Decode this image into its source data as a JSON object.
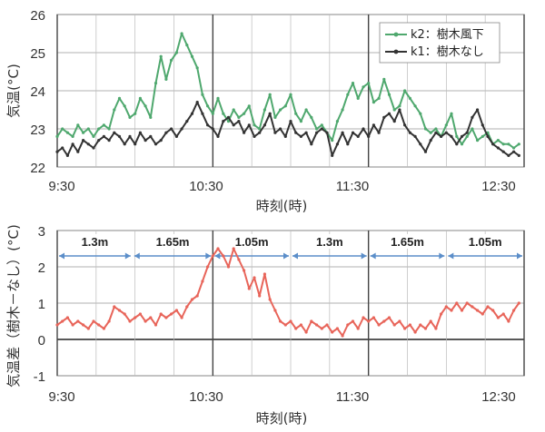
{
  "chart_data": [
    {
      "type": "line",
      "ylabel": "気温(°C)",
      "xlabel": "時刻(時)",
      "ylim": [
        22,
        26
      ],
      "yticks": [
        "22",
        "23",
        "24",
        "25",
        "26"
      ],
      "xticks": [
        "9:30",
        "10:30",
        "11:30",
        "12:30"
      ],
      "xlim_minutes": [
        0,
        180
      ],
      "grid": true,
      "legend_position": "top-right",
      "series": [
        {
          "name": "k2：樹木風下",
          "color": "#4fa86e",
          "points": [
            [
              0,
              22.8
            ],
            [
              4,
              23.0
            ],
            [
              8,
              22.9
            ],
            [
              12,
              22.8
            ],
            [
              16,
              23.1
            ],
            [
              20,
              22.9
            ],
            [
              24,
              23.0
            ],
            [
              28,
              22.8
            ],
            [
              32,
              23.0
            ],
            [
              36,
              23.1
            ],
            [
              40,
              23.0
            ],
            [
              44,
              23.5
            ],
            [
              48,
              23.8
            ],
            [
              52,
              23.6
            ],
            [
              56,
              23.3
            ],
            [
              60,
              23.4
            ],
            [
              64,
              23.8
            ],
            [
              68,
              23.6
            ],
            [
              72,
              23.3
            ],
            [
              76,
              24.2
            ],
            [
              80,
              24.9
            ],
            [
              84,
              24.3
            ],
            [
              88,
              24.8
            ],
            [
              92,
              25.0
            ],
            [
              96,
              25.5
            ],
            [
              100,
              25.2
            ],
            [
              104,
              24.9
            ],
            [
              108,
              24.6
            ],
            [
              112,
              23.9
            ],
            [
              116,
              23.6
            ],
            [
              120,
              23.4
            ],
            [
              124,
              23.8
            ],
            [
              128,
              23.4
            ],
            [
              132,
              23.2
            ],
            [
              136,
              23.5
            ],
            [
              140,
              23.3
            ],
            [
              144,
              23.4
            ],
            [
              148,
              23.6
            ],
            [
              152,
              23.1
            ],
            [
              156,
              23.0
            ],
            [
              160,
              23.5
            ],
            [
              164,
              23.9
            ],
            [
              168,
              23.3
            ],
            [
              172,
              23.5
            ],
            [
              176,
              23.6
            ],
            [
              180,
              23.9
            ],
            [
              184,
              23.4
            ],
            [
              188,
              23.2
            ],
            [
              192,
              23.5
            ],
            [
              196,
              23.3
            ],
            [
              200,
              23.0
            ],
            [
              204,
              23.1
            ],
            [
              208,
              22.9
            ],
            [
              212,
              22.7
            ],
            [
              216,
              23.2
            ],
            [
              220,
              23.5
            ],
            [
              224,
              23.9
            ],
            [
              228,
              24.2
            ],
            [
              232,
              23.8
            ],
            [
              236,
              24.1
            ],
            [
              240,
              24.2
            ],
            [
              244,
              23.7
            ],
            [
              248,
              23.8
            ],
            [
              252,
              24.3
            ],
            [
              256,
              23.9
            ],
            [
              260,
              23.5
            ],
            [
              264,
              23.6
            ],
            [
              268,
              24.0
            ],
            [
              272,
              23.8
            ],
            [
              276,
              23.6
            ],
            [
              280,
              23.4
            ],
            [
              284,
              23.0
            ],
            [
              288,
              22.9
            ],
            [
              292,
              23.0
            ],
            [
              296,
              22.8
            ],
            [
              300,
              23.1
            ],
            [
              304,
              23.4
            ],
            [
              308,
              22.8
            ],
            [
              312,
              22.6
            ],
            [
              316,
              22.8
            ],
            [
              320,
              23.0
            ],
            [
              324,
              22.7
            ],
            [
              328,
              22.8
            ],
            [
              332,
              22.9
            ],
            [
              336,
              22.6
            ],
            [
              340,
              22.7
            ],
            [
              344,
              22.6
            ],
            [
              348,
              22.6
            ],
            [
              352,
              22.5
            ],
            [
              356,
              22.6
            ]
          ]
        },
        {
          "name": "k1：樹木なし",
          "color": "#333333",
          "points": [
            [
              0,
              22.4
            ],
            [
              4,
              22.5
            ],
            [
              8,
              22.3
            ],
            [
              12,
              22.6
            ],
            [
              16,
              22.4
            ],
            [
              20,
              22.7
            ],
            [
              24,
              22.6
            ],
            [
              28,
              22.5
            ],
            [
              32,
              22.7
            ],
            [
              36,
              22.8
            ],
            [
              40,
              22.7
            ],
            [
              44,
              22.9
            ],
            [
              48,
              22.8
            ],
            [
              52,
              22.6
            ],
            [
              56,
              22.8
            ],
            [
              60,
              22.6
            ],
            [
              64,
              22.9
            ],
            [
              68,
              22.7
            ],
            [
              72,
              22.8
            ],
            [
              76,
              22.6
            ],
            [
              80,
              22.7
            ],
            [
              84,
              22.9
            ],
            [
              88,
              23.0
            ],
            [
              92,
              22.8
            ],
            [
              96,
              23.0
            ],
            [
              100,
              23.2
            ],
            [
              104,
              23.4
            ],
            [
              108,
              23.7
            ],
            [
              112,
              23.4
            ],
            [
              116,
              23.1
            ],
            [
              120,
              23.0
            ],
            [
              124,
              22.8
            ],
            [
              128,
              23.2
            ],
            [
              132,
              23.3
            ],
            [
              136,
              23.1
            ],
            [
              140,
              23.2
            ],
            [
              144,
              22.9
            ],
            [
              148,
              23.1
            ],
            [
              152,
              22.8
            ],
            [
              156,
              22.9
            ],
            [
              160,
              23.1
            ],
            [
              164,
              23.4
            ],
            [
              168,
              22.9
            ],
            [
              172,
              23.0
            ],
            [
              176,
              22.8
            ],
            [
              180,
              23.2
            ],
            [
              184,
              22.9
            ],
            [
              188,
              22.8
            ],
            [
              192,
              22.9
            ],
            [
              196,
              22.6
            ],
            [
              200,
              22.9
            ],
            [
              204,
              23.0
            ],
            [
              208,
              22.9
            ],
            [
              212,
              22.3
            ],
            [
              216,
              22.6
            ],
            [
              220,
              22.9
            ],
            [
              224,
              22.6
            ],
            [
              228,
              22.9
            ],
            [
              232,
              22.8
            ],
            [
              236,
              23.0
            ],
            [
              240,
              22.8
            ],
            [
              244,
              23.1
            ],
            [
              248,
              22.9
            ],
            [
              252,
              23.3
            ],
            [
              256,
              23.4
            ],
            [
              260,
              23.2
            ],
            [
              264,
              23.5
            ],
            [
              268,
              23.1
            ],
            [
              272,
              22.9
            ],
            [
              276,
              22.8
            ],
            [
              280,
              22.6
            ],
            [
              284,
              22.4
            ],
            [
              288,
              22.7
            ],
            [
              292,
              22.9
            ],
            [
              296,
              22.8
            ],
            [
              300,
              22.9
            ],
            [
              304,
              22.8
            ],
            [
              308,
              22.6
            ],
            [
              312,
              22.8
            ],
            [
              316,
              22.9
            ],
            [
              320,
              23.3
            ],
            [
              324,
              23.5
            ],
            [
              328,
              23.1
            ],
            [
              332,
              22.8
            ],
            [
              336,
              22.6
            ],
            [
              340,
              22.5
            ],
            [
              344,
              22.4
            ],
            [
              348,
              22.3
            ],
            [
              352,
              22.4
            ],
            [
              356,
              22.3
            ]
          ]
        }
      ]
    },
    {
      "type": "line",
      "ylabel": "気温差（樹木－なし）(°C)",
      "xlabel": "時刻(時)",
      "ylim": [
        -1,
        3
      ],
      "yticks": [
        "-1",
        "0",
        "1",
        "2",
        "3"
      ],
      "xticks": [
        "9:30",
        "10:30",
        "11:30",
        "12:30"
      ],
      "xlim_minutes": [
        0,
        180
      ],
      "grid": true,
      "series": [
        {
          "color": "#e8655a",
          "points": [
            [
              0,
              0.4
            ],
            [
              4,
              0.5
            ],
            [
              8,
              0.6
            ],
            [
              12,
              0.4
            ],
            [
              16,
              0.5
            ],
            [
              20,
              0.4
            ],
            [
              24,
              0.3
            ],
            [
              28,
              0.5
            ],
            [
              32,
              0.4
            ],
            [
              36,
              0.3
            ],
            [
              40,
              0.5
            ],
            [
              44,
              0.9
            ],
            [
              48,
              0.8
            ],
            [
              52,
              0.7
            ],
            [
              56,
              0.5
            ],
            [
              60,
              0.6
            ],
            [
              64,
              0.7
            ],
            [
              68,
              0.5
            ],
            [
              72,
              0.6
            ],
            [
              76,
              0.4
            ],
            [
              80,
              0.7
            ],
            [
              84,
              0.6
            ],
            [
              88,
              0.7
            ],
            [
              92,
              0.8
            ],
            [
              96,
              0.6
            ],
            [
              100,
              0.9
            ],
            [
              104,
              1.1
            ],
            [
              108,
              1.2
            ],
            [
              112,
              1.6
            ],
            [
              116,
              2.0
            ],
            [
              120,
              2.3
            ],
            [
              124,
              2.5
            ],
            [
              128,
              2.3
            ],
            [
              132,
              2.0
            ],
            [
              136,
              2.5
            ],
            [
              140,
              2.2
            ],
            [
              144,
              1.9
            ],
            [
              148,
              1.4
            ],
            [
              152,
              1.7
            ],
            [
              156,
              1.2
            ],
            [
              160,
              1.8
            ],
            [
              164,
              1.1
            ],
            [
              168,
              0.8
            ],
            [
              172,
              0.5
            ],
            [
              176,
              0.4
            ],
            [
              180,
              0.5
            ],
            [
              184,
              0.3
            ],
            [
              188,
              0.4
            ],
            [
              192,
              0.2
            ],
            [
              196,
              0.5
            ],
            [
              200,
              0.4
            ],
            [
              204,
              0.3
            ],
            [
              208,
              0.4
            ],
            [
              212,
              0.2
            ],
            [
              216,
              0.3
            ],
            [
              220,
              0.1
            ],
            [
              224,
              0.4
            ],
            [
              228,
              0.5
            ],
            [
              232,
              0.3
            ],
            [
              236,
              0.6
            ],
            [
              240,
              0.5
            ],
            [
              244,
              0.6
            ],
            [
              248,
              0.4
            ],
            [
              252,
              0.5
            ],
            [
              256,
              0.6
            ],
            [
              260,
              0.4
            ],
            [
              264,
              0.5
            ],
            [
              268,
              0.3
            ],
            [
              272,
              0.4
            ],
            [
              276,
              0.2
            ],
            [
              280,
              0.4
            ],
            [
              284,
              0.3
            ],
            [
              288,
              0.5
            ],
            [
              292,
              0.3
            ],
            [
              296,
              0.7
            ],
            [
              300,
              0.9
            ],
            [
              304,
              0.8
            ],
            [
              308,
              1.0
            ],
            [
              312,
              0.8
            ],
            [
              316,
              1.0
            ],
            [
              320,
              0.9
            ],
            [
              324,
              0.8
            ],
            [
              328,
              0.7
            ],
            [
              332,
              0.9
            ],
            [
              336,
              0.8
            ],
            [
              340,
              0.6
            ],
            [
              344,
              0.7
            ],
            [
              348,
              0.5
            ],
            [
              352,
              0.8
            ],
            [
              356,
              1.0
            ]
          ]
        }
      ],
      "annotations": [
        {
          "label": "1.3m",
          "from_min": 0,
          "to_min": 29
        },
        {
          "label": "1.65m",
          "from_min": 29,
          "to_min": 60
        },
        {
          "label": "1.05m",
          "from_min": 60,
          "to_min": 90
        },
        {
          "label": "1.3m",
          "from_min": 90,
          "to_min": 120
        },
        {
          "label": "1.65m",
          "from_min": 120,
          "to_min": 150
        },
        {
          "label": "1.05m",
          "from_min": 150,
          "to_min": 180
        }
      ]
    }
  ]
}
